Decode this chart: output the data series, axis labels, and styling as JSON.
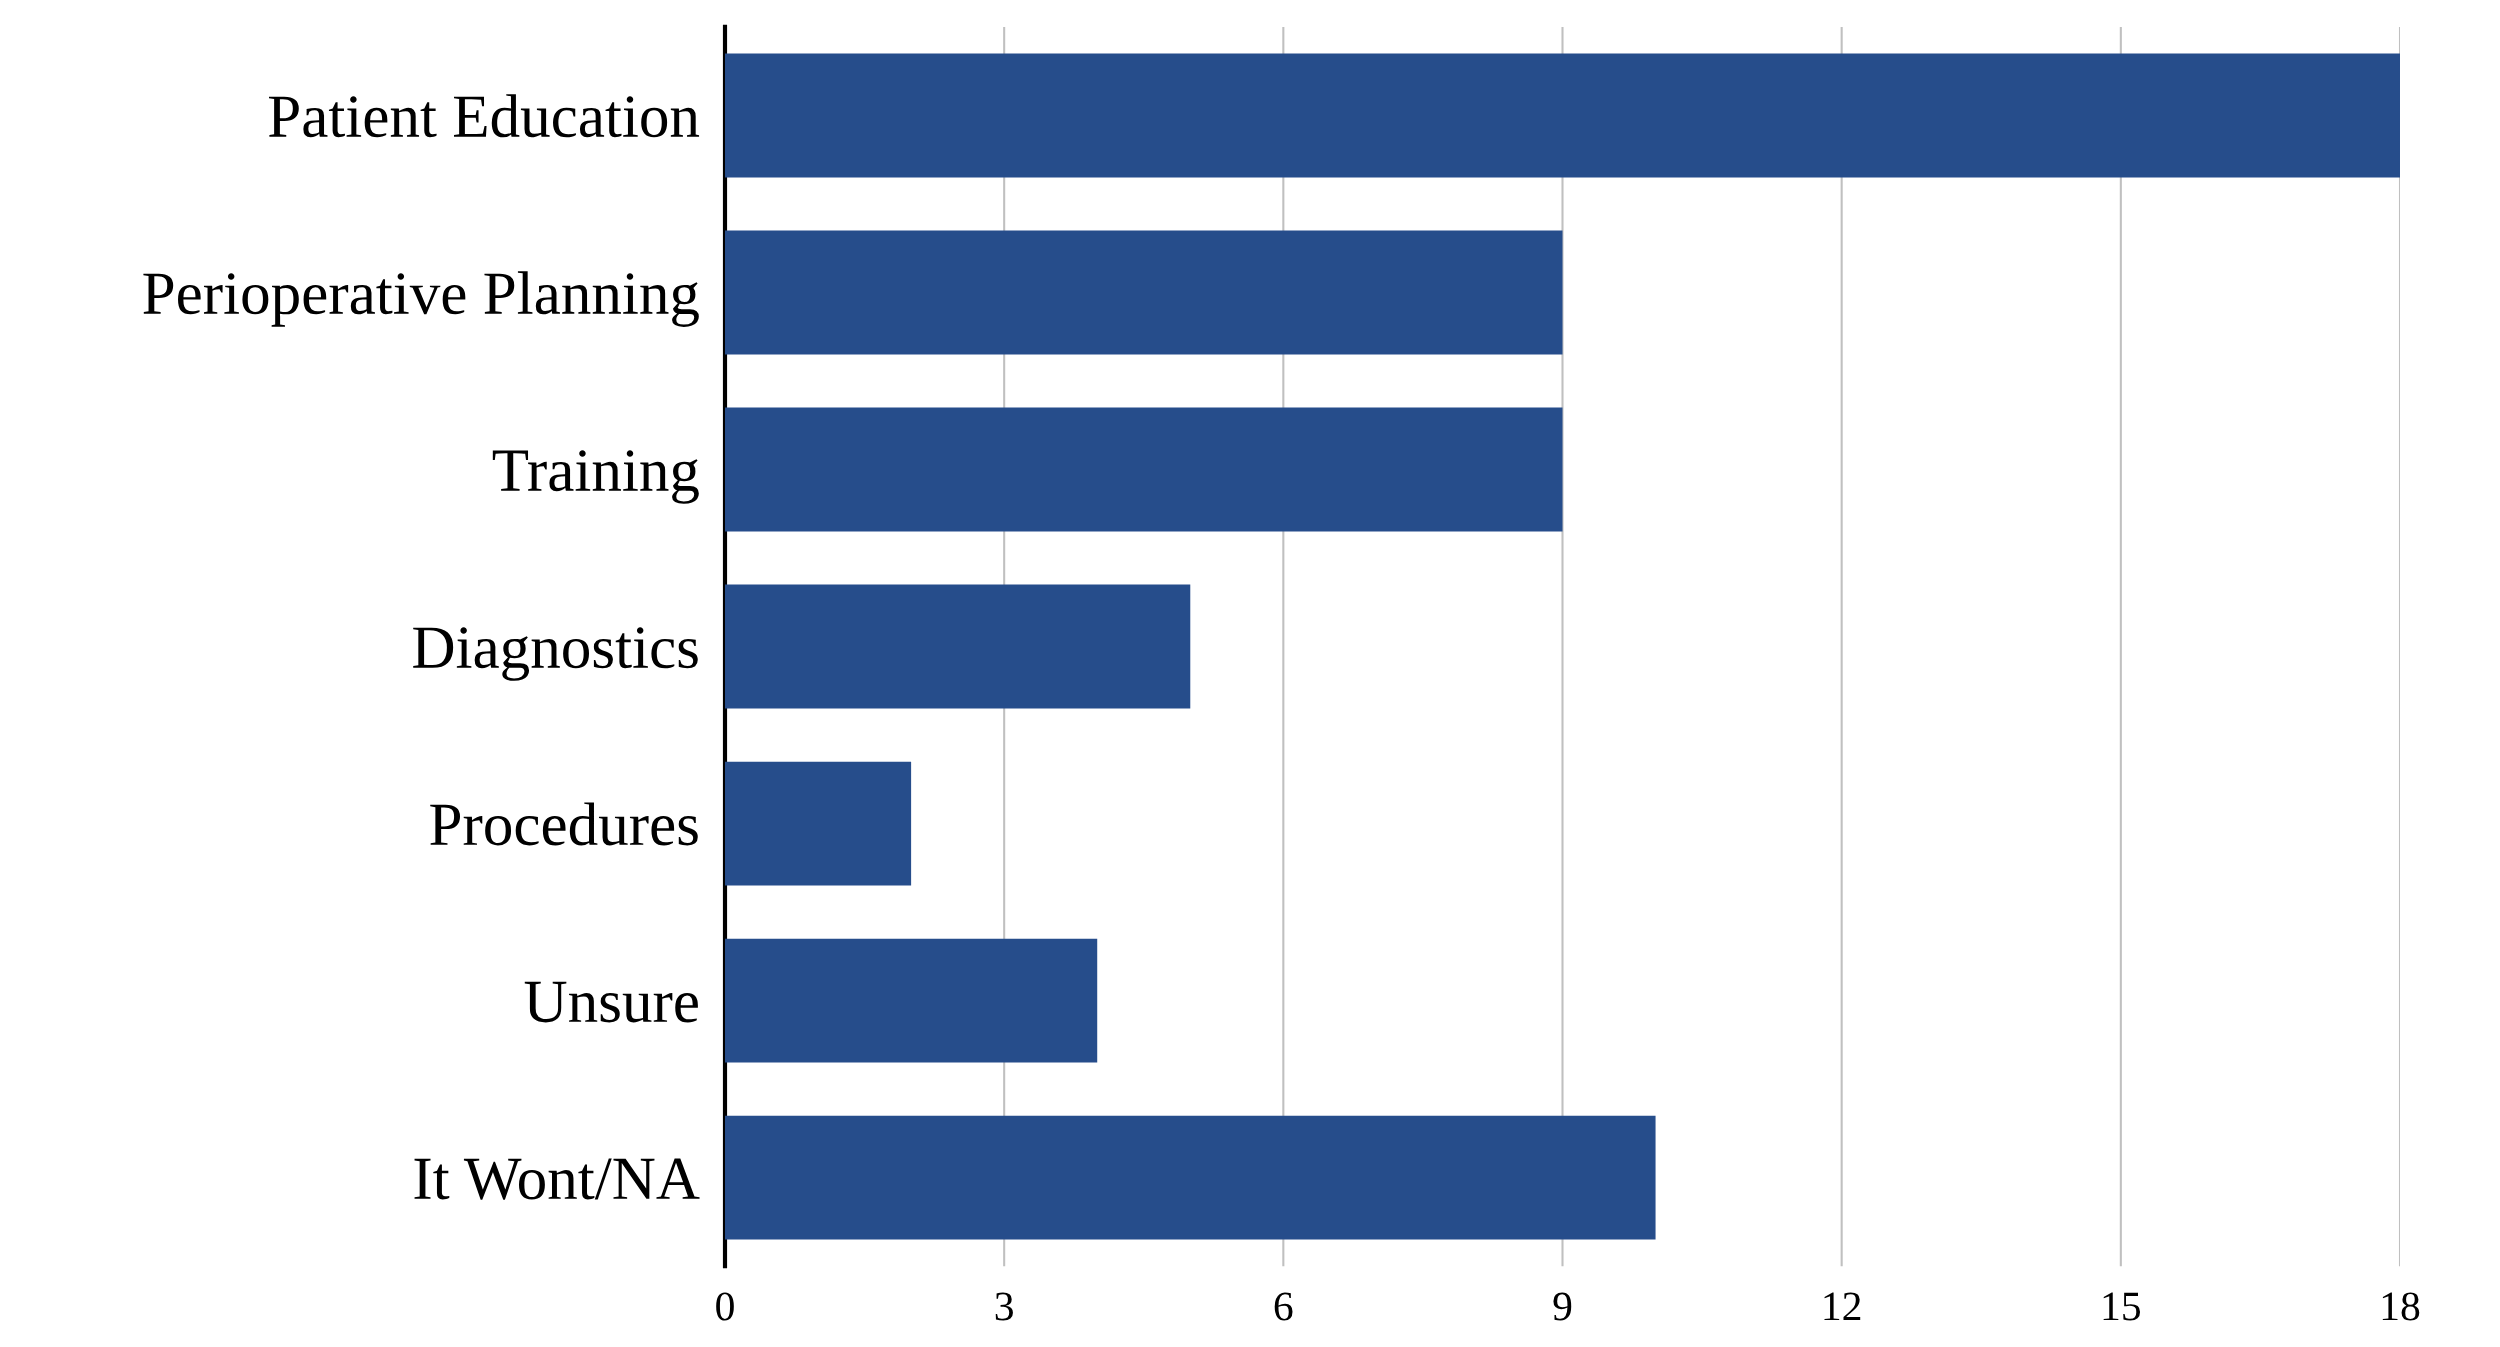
{
  "chart_data": {
    "type": "bar",
    "orientation": "horizontal",
    "categories": [
      "Patient Education",
      "Perioperative Planning",
      "Training",
      "Diagnostics",
      "Procedures",
      "Unsure",
      "It Wont/NA"
    ],
    "values": [
      18,
      9,
      9,
      5,
      2,
      4,
      10
    ],
    "color": "#264d8b",
    "xlim": [
      0,
      18
    ],
    "xticks": [
      0,
      3,
      6,
      9,
      12,
      15,
      18
    ],
    "grid": "x",
    "legend": false
  }
}
